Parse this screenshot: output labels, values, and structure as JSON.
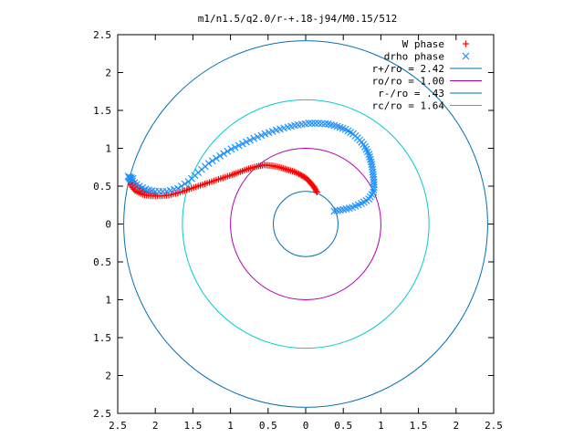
{
  "chart_data": {
    "type": "scatter",
    "title": "m1/n1.5/q2.0/r-+.18-j94/M0.15/512",
    "xlim": [
      -2.5,
      2.5
    ],
    "ylim": [
      -2.5,
      2.5
    ],
    "x_ticks": [
      -2.5,
      -2,
      -1.5,
      -1,
      -0.5,
      0,
      0.5,
      1,
      1.5,
      2,
      2.5
    ],
    "y_ticks": [
      2.5,
      2,
      1.5,
      1,
      0.5,
      0,
      -0.5,
      -1,
      -1.5,
      -2,
      -2.5
    ],
    "x_tick_labels": [
      "2.5",
      "2",
      "1.5",
      "1",
      "0.5",
      "0",
      "0.5",
      "1",
      "1.5",
      "2",
      "2.5"
    ],
    "y_tick_labels": [
      "2.5",
      "2",
      "1.5",
      "1",
      "0.5",
      "0",
      "0.5",
      "1",
      "1.5",
      "2",
      "2.5"
    ],
    "grid": false,
    "legend_position": "top-right",
    "circles": [
      {
        "name": "r+/ro = 2.42",
        "radius": 2.42,
        "color": "#0072b2"
      },
      {
        "name": "ro/ro = 1.00",
        "radius": 1.0,
        "color": "#b000b0"
      },
      {
        "name": "r-/ro = .43",
        "radius": 0.43,
        "color": "#0072b2"
      },
      {
        "name": "rc/ro = 1.64",
        "radius": 1.64,
        "color": "#00cccc"
      }
    ],
    "series": [
      {
        "name": "W phase",
        "marker": "+",
        "color": "#ff0000",
        "points": [
          [
            0.15,
            0.42
          ],
          [
            0.11,
            0.49
          ],
          [
            0.06,
            0.55
          ],
          [
            0.0,
            0.61
          ],
          [
            -0.07,
            0.65
          ],
          [
            -0.15,
            0.69
          ],
          [
            -0.25,
            0.72
          ],
          [
            -0.35,
            0.75
          ],
          [
            -0.45,
            0.77
          ],
          [
            -0.55,
            0.78
          ],
          [
            -0.65,
            0.76
          ],
          [
            -0.76,
            0.73
          ],
          [
            -0.87,
            0.69
          ],
          [
            -0.98,
            0.65
          ],
          [
            -1.1,
            0.61
          ],
          [
            -1.22,
            0.57
          ],
          [
            -1.34,
            0.53
          ],
          [
            -1.46,
            0.49
          ],
          [
            -1.58,
            0.45
          ],
          [
            -1.7,
            0.41
          ],
          [
            -1.82,
            0.38
          ],
          [
            -1.94,
            0.37
          ],
          [
            -2.06,
            0.37
          ],
          [
            -2.17,
            0.39
          ],
          [
            -2.27,
            0.44
          ],
          [
            -2.33,
            0.52
          ],
          [
            -2.3,
            0.56
          ],
          [
            -2.22,
            0.48
          ],
          [
            -2.12,
            0.42
          ],
          [
            -2.0,
            0.39
          ]
        ]
      },
      {
        "name": "drho phase",
        "marker": "x",
        "color": "#1e90ff",
        "points": [
          [
            0.38,
            0.17
          ],
          [
            0.5,
            0.19
          ],
          [
            0.62,
            0.22
          ],
          [
            0.74,
            0.27
          ],
          [
            0.84,
            0.33
          ],
          [
            0.9,
            0.42
          ],
          [
            0.91,
            0.52
          ],
          [
            0.9,
            0.62
          ],
          [
            0.89,
            0.72
          ],
          [
            0.87,
            0.82
          ],
          [
            0.84,
            0.92
          ],
          [
            0.79,
            1.02
          ],
          [
            0.72,
            1.11
          ],
          [
            0.63,
            1.19
          ],
          [
            0.53,
            1.25
          ],
          [
            0.42,
            1.29
          ],
          [
            0.3,
            1.32
          ],
          [
            0.17,
            1.33
          ],
          [
            0.04,
            1.33
          ],
          [
            -0.1,
            1.31
          ],
          [
            -0.24,
            1.28
          ],
          [
            -0.39,
            1.24
          ],
          [
            -0.54,
            1.19
          ],
          [
            -0.69,
            1.13
          ],
          [
            -0.84,
            1.06
          ],
          [
            -0.99,
            0.99
          ],
          [
            -1.14,
            0.9
          ],
          [
            -1.29,
            0.8
          ],
          [
            -1.43,
            0.68
          ],
          [
            -1.56,
            0.56
          ],
          [
            -1.7,
            0.47
          ],
          [
            -1.85,
            0.43
          ],
          [
            -2.0,
            0.43
          ],
          [
            -2.13,
            0.46
          ],
          [
            -2.25,
            0.52
          ],
          [
            -2.33,
            0.59
          ],
          [
            -2.36,
            0.63
          ],
          [
            -2.3,
            0.6
          ]
        ]
      }
    ]
  }
}
